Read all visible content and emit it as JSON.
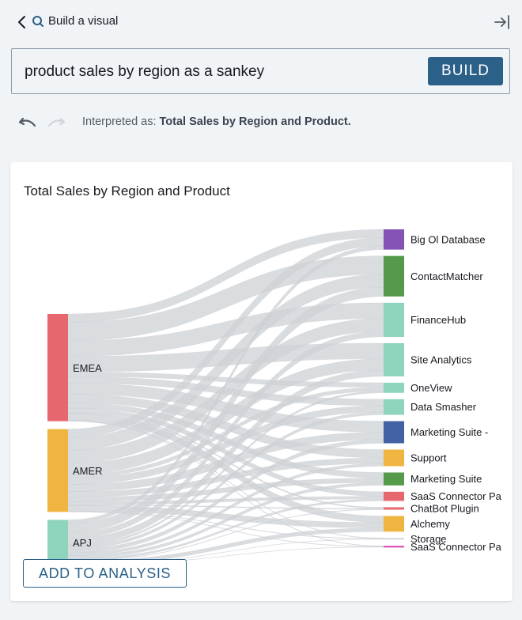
{
  "header": {
    "title": "Build a visual",
    "icons": [
      "chevron-left-icon",
      "search-icon",
      "collapse-panel-icon"
    ]
  },
  "query": {
    "value": "product sales by region as a sankey",
    "build_label": "BUILD"
  },
  "history": {
    "icons": [
      "undo-icon",
      "redo-icon"
    ],
    "interpreted_prefix": "Interpreted as:",
    "interpreted_value": "Total Sales by Region and Product."
  },
  "visual": {
    "title": "Total Sales by Region and Product",
    "add_label": "ADD TO ANALYSIS"
  },
  "colors": {
    "accent": "#2b6088",
    "link": "#cdd1d5"
  },
  "chart_data": {
    "type": "sankey",
    "title": "Total Sales by Region and Product",
    "sources": [
      {
        "name": "EMEA",
        "color": "#e7676f"
      },
      {
        "name": "AMER",
        "color": "#f0b440"
      },
      {
        "name": "APJ",
        "color": "#8fd4bd"
      }
    ],
    "targets": [
      {
        "name": "Big Ol Database",
        "color": "#8453b6"
      },
      {
        "name": "ContactMatcher",
        "color": "#55994a"
      },
      {
        "name": "FinanceHub",
        "color": "#8fd4bd"
      },
      {
        "name": "Site Analytics",
        "color": "#8fd4bd"
      },
      {
        "name": "OneView",
        "color": "#8fd4bd"
      },
      {
        "name": "Data Smasher",
        "color": "#8fd4bd"
      },
      {
        "name": "Marketing Suite -",
        "color": "#4360a3"
      },
      {
        "name": "Support",
        "color": "#f0b440"
      },
      {
        "name": "Marketing Suite",
        "color": "#55994a"
      },
      {
        "name": "SaaS Connector Pa",
        "color": "#e7676f"
      },
      {
        "name": "ChatBot Plugin",
        "color": "#e7676f"
      },
      {
        "name": "Alchemy",
        "color": "#f0b440"
      },
      {
        "name": "Storage",
        "color": "#d0d6dc"
      },
      {
        "name": "SaaS Connector Pa",
        "color": "#d63fae"
      }
    ],
    "flows": [
      [
        9,
        9,
        4
      ],
      [
        20,
        14,
        10
      ],
      [
        17,
        14,
        6
      ],
      [
        17,
        12,
        7
      ],
      [
        5,
        4,
        2
      ],
      [
        7,
        7,
        3
      ],
      [
        12,
        8,
        4
      ],
      [
        9,
        6,
        3
      ],
      [
        6,
        5,
        3
      ],
      [
        5,
        3,
        2
      ],
      [
        1.2,
        0.9,
        0.5
      ],
      [
        7,
        6,
        4
      ],
      [
        0.6,
        0.5,
        0.3
      ],
      [
        0.6,
        0.5,
        0.3
      ]
    ]
  }
}
